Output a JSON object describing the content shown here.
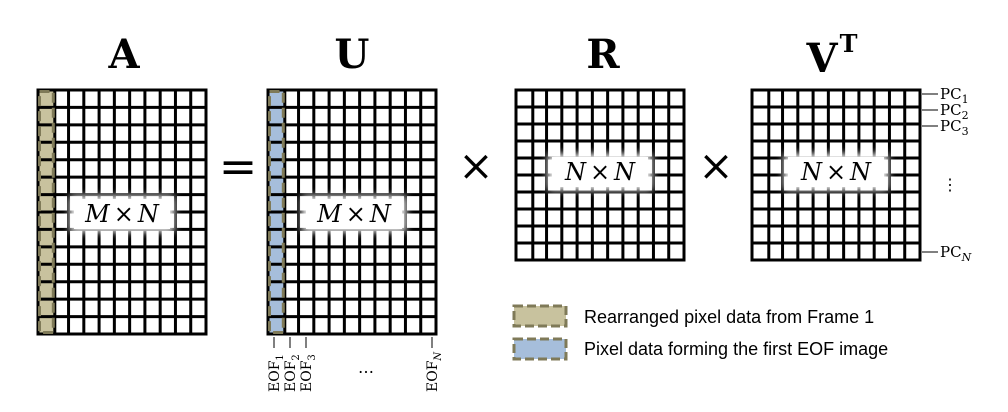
{
  "equation": {
    "matrices": [
      {
        "title": "A",
        "label": "M × N",
        "label_m": "M",
        "label_op": "×",
        "label_n": "N",
        "highlight": "frame",
        "rows": 14,
        "cols": 10
      },
      {
        "title": "U",
        "label": "M × N",
        "label_m": "M",
        "label_op": "×",
        "label_n": "N",
        "highlight": "eof",
        "rows": 14,
        "cols": 10
      },
      {
        "title": "R",
        "label": "N × N",
        "label_m": "N",
        "label_op": "×",
        "label_n": "N",
        "highlight": "none",
        "rows": 10,
        "cols": 10
      },
      {
        "title": "V",
        "title_sup": "T",
        "label": "N × N",
        "label_m": "N",
        "label_op": "×",
        "label_n": "N",
        "highlight": "none",
        "rows": 10,
        "cols": 10
      }
    ],
    "equals_sign": "=",
    "times_sign": "×"
  },
  "eof_labels": {
    "prefix": "EOF",
    "subs": [
      "1",
      "2",
      "3"
    ],
    "last_sub": "N",
    "ellipsis": "…"
  },
  "pc_labels": {
    "prefix": "PC",
    "subs": [
      "1",
      "2",
      "3"
    ],
    "last_sub": "N",
    "ellipsis": "⋮"
  },
  "legend": {
    "items": [
      {
        "text": "Rearranged pixel data from Frame 1",
        "fill": "#c8c29e",
        "stroke": "#7f7a58"
      },
      {
        "text": "Pixel data forming the first EOF image",
        "fill": "#a6bedb",
        "stroke": "#7f7a58"
      }
    ]
  },
  "colors": {
    "grid": "#000000",
    "frame_highlight": "#c8c29e",
    "eof_highlight": "#a6bedb",
    "highlight_border": "#7f7a58"
  }
}
